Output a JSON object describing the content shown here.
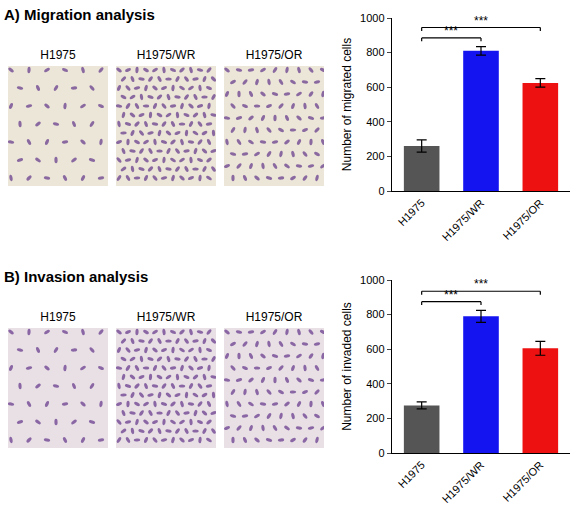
{
  "panels": [
    {
      "title": "A) Migration analysis",
      "image_labels": [
        "H1975",
        "H1975/WR",
        "H1975/OR"
      ]
    },
    {
      "title": "B) Invasion analysis",
      "image_labels": [
        "H1975",
        "H1975/WR",
        "H1975/OR"
      ]
    }
  ],
  "chart_data": [
    {
      "type": "bar",
      "y_label": "Number of migrated cells",
      "categories": [
        "H1975",
        "H1975/WR",
        "H1975/OR"
      ],
      "values": [
        260,
        810,
        625
      ],
      "errors": [
        35,
        25,
        25
      ],
      "colors": [
        "#555555",
        "#1414f0",
        "#ee1111"
      ],
      "ylim": [
        0,
        1000
      ],
      "yticks": [
        0,
        200,
        400,
        600,
        800,
        1000
      ],
      "comparisons": [
        {
          "from": "H1975",
          "to": "H1975/WR",
          "label": "***"
        },
        {
          "from": "H1975",
          "to": "H1975/OR",
          "label": "***"
        }
      ]
    },
    {
      "type": "bar",
      "y_label": "Number of invaded cells",
      "categories": [
        "H1975",
        "H1975/WR",
        "H1975/OR"
      ],
      "values": [
        275,
        790,
        605
      ],
      "errors": [
        20,
        35,
        40
      ],
      "colors": [
        "#555555",
        "#1414f0",
        "#ee1111"
      ],
      "ylim": [
        0,
        1000
      ],
      "yticks": [
        0,
        200,
        400,
        600,
        800,
        1000
      ],
      "comparisons": [
        {
          "from": "H1975",
          "to": "H1975/WR",
          "label": "***"
        },
        {
          "from": "H1975",
          "to": "H1975/OR",
          "label": "***"
        }
      ]
    }
  ]
}
